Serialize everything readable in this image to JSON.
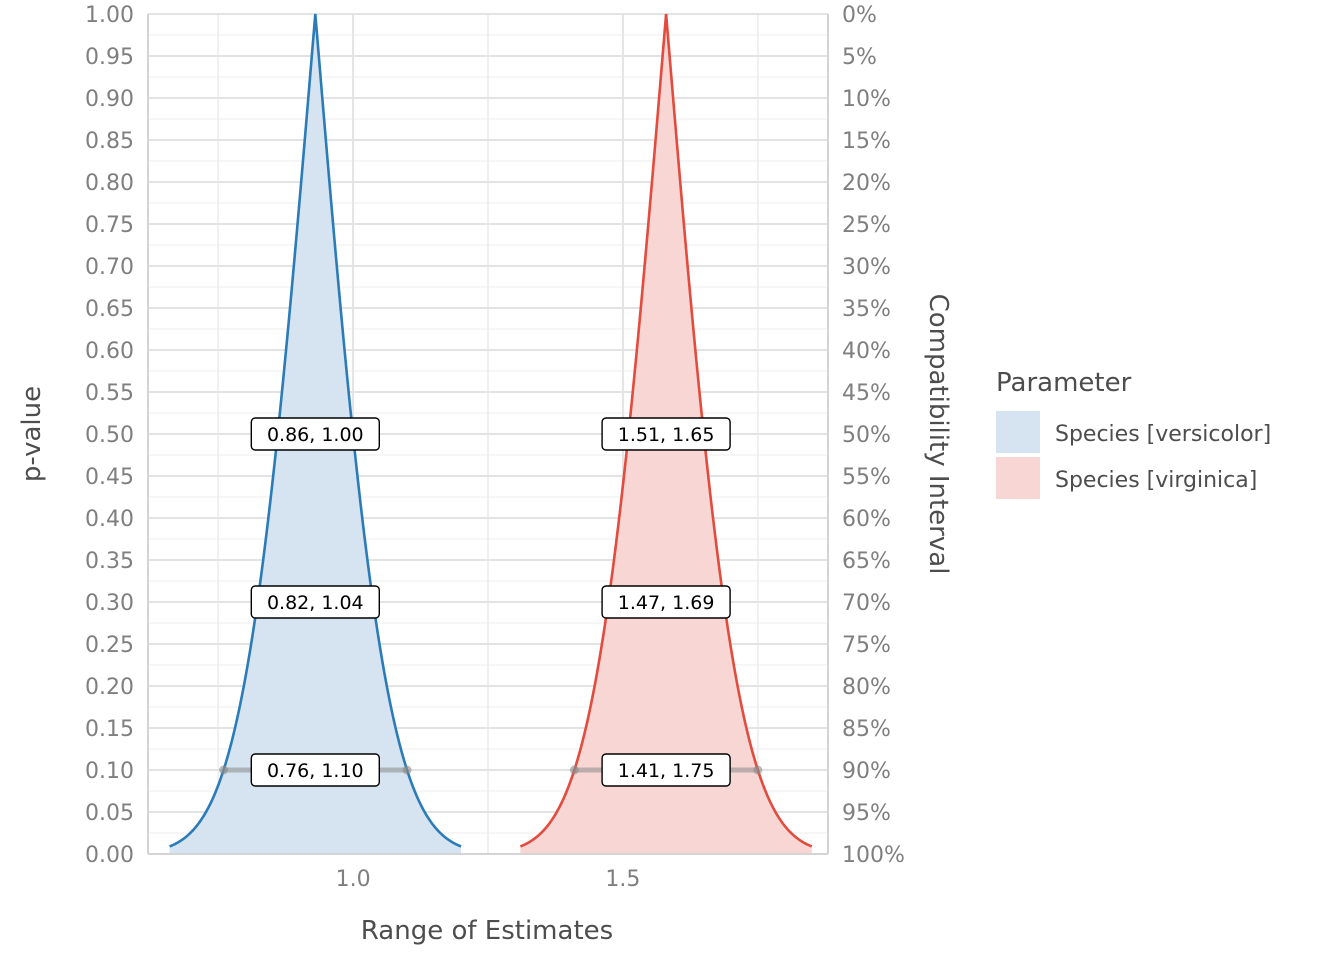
{
  "chart_data": {
    "type": "area",
    "title": "",
    "xlabel": "Range of Estimates",
    "ylabel": "p-value",
    "y2label": "Compatibility Interval",
    "xlim": [
      0.62,
      1.88
    ],
    "ylim": [
      0,
      1
    ],
    "x_ticks": [
      1.0,
      1.5
    ],
    "x_tick_labels": [
      "1.0",
      "1.5"
    ],
    "y_ticks": [
      0,
      0.05,
      0.1,
      0.15,
      0.2,
      0.25,
      0.3,
      0.35,
      0.4,
      0.45,
      0.5,
      0.55,
      0.6,
      0.65,
      0.7,
      0.75,
      0.8,
      0.85,
      0.9,
      0.95,
      1.0
    ],
    "y_tick_labels": [
      "0.00",
      "0.05",
      "0.10",
      "0.15",
      "0.20",
      "0.25",
      "0.30",
      "0.35",
      "0.40",
      "0.45",
      "0.50",
      "0.55",
      "0.60",
      "0.65",
      "0.70",
      "0.75",
      "0.80",
      "0.85",
      "0.90",
      "0.95",
      "1.00"
    ],
    "y2_tick_labels": [
      "100%",
      "95%",
      "90%",
      "85%",
      "80%",
      "75%",
      "70%",
      "65%",
      "60%",
      "55%",
      "50%",
      "45%",
      "40%",
      "35%",
      "30%",
      "25%",
      "20%",
      "15%",
      "10%",
      "5%",
      "0%"
    ],
    "grid": true,
    "legend": {
      "title": "Parameter",
      "position": "right",
      "entries": [
        "Species [versicolor]",
        "Species [virginica]"
      ]
    },
    "series": [
      {
        "name": "Species [versicolor]",
        "color": "#2b7bb9",
        "fill": "#d5e4f0",
        "estimate": 0.93,
        "x_range": [
          0.66,
          1.2
        ],
        "interval_labels": [
          {
            "p": 0.5,
            "lower": 0.86,
            "upper": 1.0,
            "text": "0.86, 1.00"
          },
          {
            "p": 0.3,
            "lower": 0.82,
            "upper": 1.04,
            "text": "0.82, 1.04"
          },
          {
            "p": 0.1,
            "lower": 0.76,
            "upper": 1.1,
            "text": "0.76, 1.10"
          }
        ]
      },
      {
        "name": "Species [virginica]",
        "color": "#e24b3d",
        "fill": "#f8d6d3",
        "estimate": 1.58,
        "x_range": [
          1.31,
          1.85
        ],
        "interval_labels": [
          {
            "p": 0.5,
            "lower": 1.51,
            "upper": 1.65,
            "text": "1.51, 1.65"
          },
          {
            "p": 0.3,
            "lower": 1.47,
            "upper": 1.69,
            "text": "1.47, 1.69"
          },
          {
            "p": 0.1,
            "lower": 1.41,
            "upper": 1.75,
            "text": "1.41, 1.75"
          }
        ]
      }
    ]
  }
}
